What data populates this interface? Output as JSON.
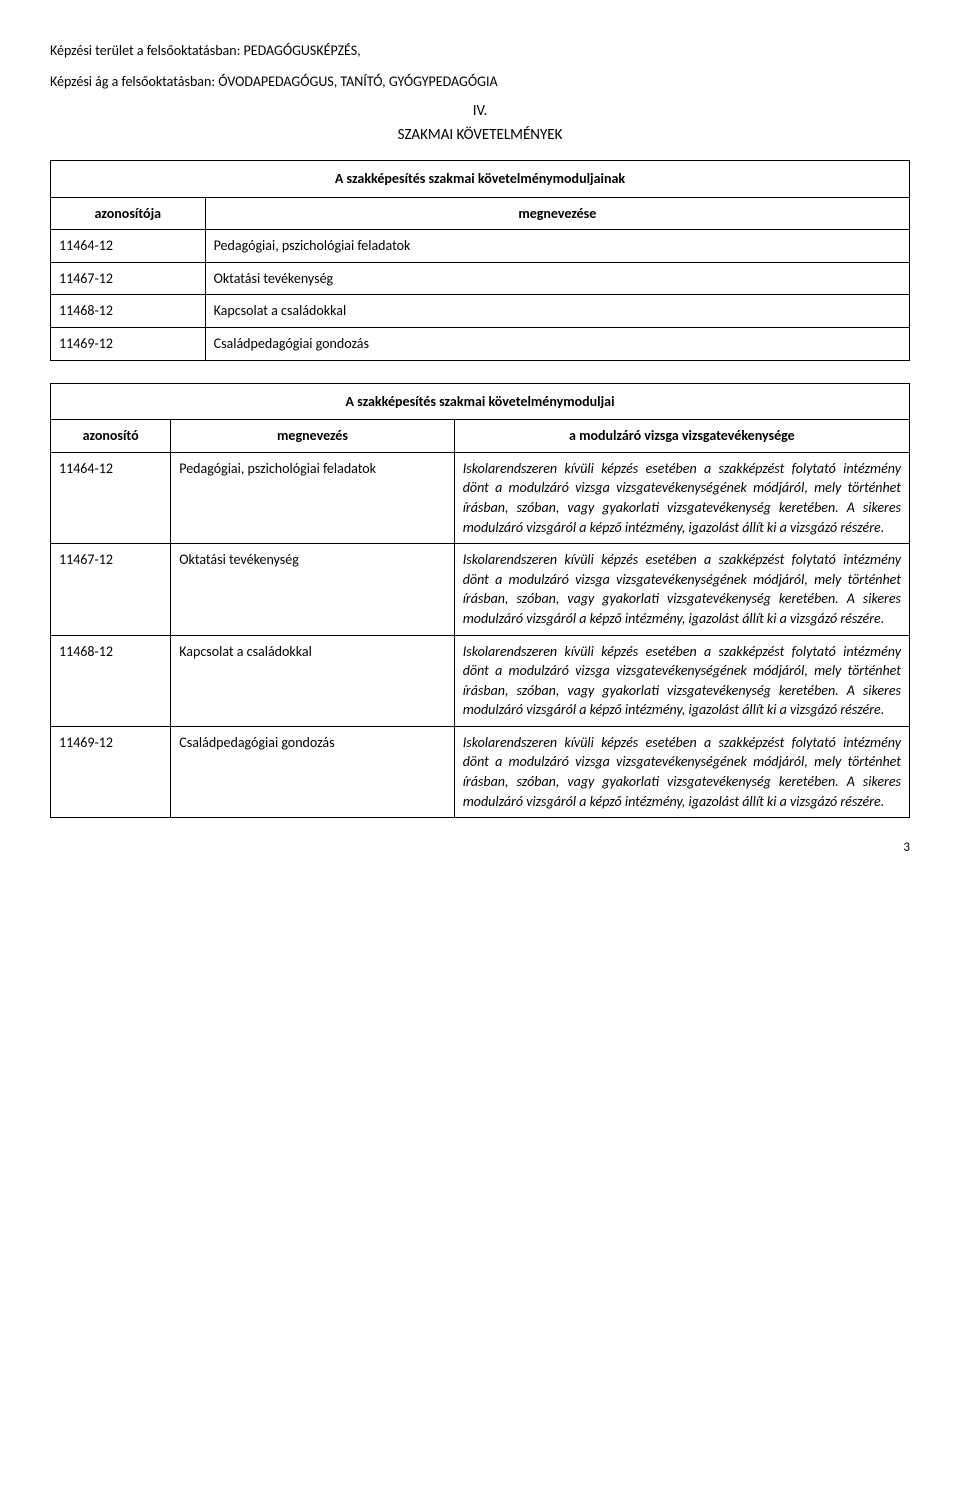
{
  "intro": {
    "line1": "Képzési terület a felsőoktatásban: PEDAGÓGUSKÉPZÉS,",
    "line2": "Képzési ág a felsőoktatásban: ÓVODAPEDAGÓGUS, TANÍTÓ, GYÓGYPEDAGÓGIA"
  },
  "section_number": "IV.",
  "section_title": "SZAKMAI KÖVETELMÉNYEK",
  "table1": {
    "caption": "A szakképesítés szakmai követelménymoduljainak",
    "header_col1": "azonosítója",
    "header_col2": "megnevezése",
    "rows": [
      {
        "id": "11464-12",
        "name": "Pedagógiai, pszichológiai feladatok"
      },
      {
        "id": "11467-12",
        "name": "Oktatási tevékenység"
      },
      {
        "id": "11468-12",
        "name": "Kapcsolat a családokkal"
      },
      {
        "id": "11469-12",
        "name": "Családpedagógiai gondozás"
      }
    ]
  },
  "table2": {
    "caption": "A szakképesítés szakmai követelménymoduljai",
    "header_col1": "azonosító",
    "header_col2": "megnevezés",
    "header_col3": "a modulzáró vizsga vizsgatevékenysége",
    "cell_text": "Iskolarendszeren kívüli képzés esetében a szakképzést folytató intézmény dönt a modulzáró vizsga vizsgatevékenységének módjáról, mely történhet írásban, szóban, vagy gyakorlati vizsgatevékenység keretében. A sikeres modulzáró vizsgáról a képző intézmény, igazolást állít ki a vizsgázó részére.",
    "rows": [
      {
        "id": "11464-12",
        "name": "Pedagógiai, pszichológiai feladatok"
      },
      {
        "id": "11467-12",
        "name": "Oktatási tevékenység"
      },
      {
        "id": "11468-12",
        "name": "Kapcsolat a családokkal"
      },
      {
        "id": "11469-12",
        "name": "Családpedagógiai gondozás"
      }
    ]
  },
  "page_number": "3"
}
